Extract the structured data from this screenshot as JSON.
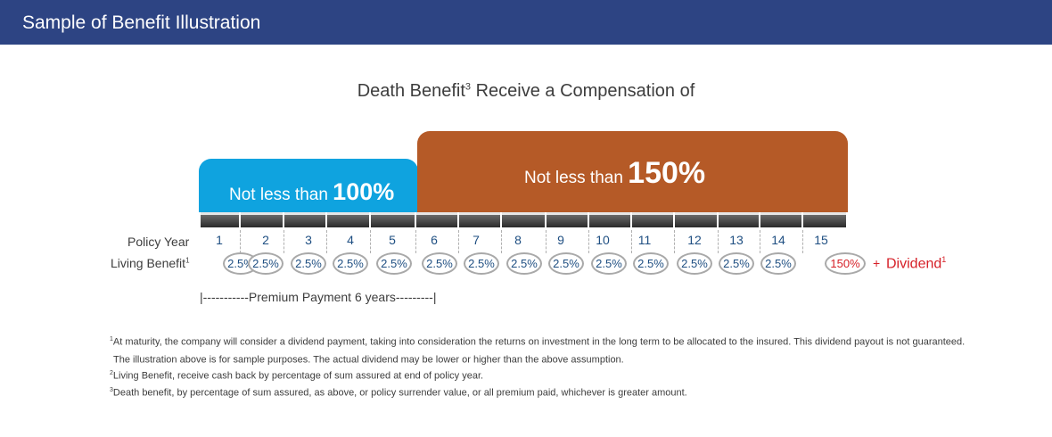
{
  "header": {
    "title": "Sample of Benefit Illustration"
  },
  "title": {
    "text": "Death Benefit",
    "sup": "3",
    "rest": " Receive a Compensation of"
  },
  "box1": {
    "prefix": "Not less than ",
    "value": "100%"
  },
  "box2": {
    "prefix": "Not less than ",
    "value": "150%"
  },
  "labels": {
    "policy_year": "Policy Year",
    "living_benefit": "Living Benefit",
    "living_benefit_sup": "1"
  },
  "years": [
    "1",
    "2",
    "3",
    "4",
    "5",
    "6",
    "7",
    "8",
    "9",
    "10",
    "11",
    "12",
    "13",
    "14",
    "15"
  ],
  "living_benefits": [
    "2.5%",
    "2.5%",
    "2.5%",
    "2.5%",
    "2.5%",
    "2.5%",
    "2.5%",
    "2.5%",
    "2.5%",
    "2.5%",
    "2.5%",
    "2.5%",
    "2.5%",
    "2.5%",
    "150%"
  ],
  "plus": "+",
  "dividend": {
    "text": "Dividend",
    "sup": "1"
  },
  "premium": "|-----------Premium Payment 6 years---------|",
  "footnotes": [
    {
      "sup": "1",
      "text": "At maturity, the company will consider a dividend payment, taking into consideration the returns on investment in the long term to be allocated to the insured. This dividend payout is not guaranteed."
    },
    {
      "sup": "",
      "text": "The illustration above is for sample purposes. The actual dividend may be lower or higher than the above assumption."
    },
    {
      "sup": "2",
      "text": "Living Benefit, receive cash back by percentage of sum assured at end of policy year."
    },
    {
      "sup": "3",
      "text": "Death benefit, by percentage of sum assured, as above, or policy surrender value, or all premium paid, whichever is greater amount."
    }
  ],
  "colors": {
    "header": "#2d4483",
    "blue_box": "#0fa3df",
    "orange_box": "#b55a27",
    "accent_red": "#d62028",
    "year_text": "#1f4f82"
  }
}
